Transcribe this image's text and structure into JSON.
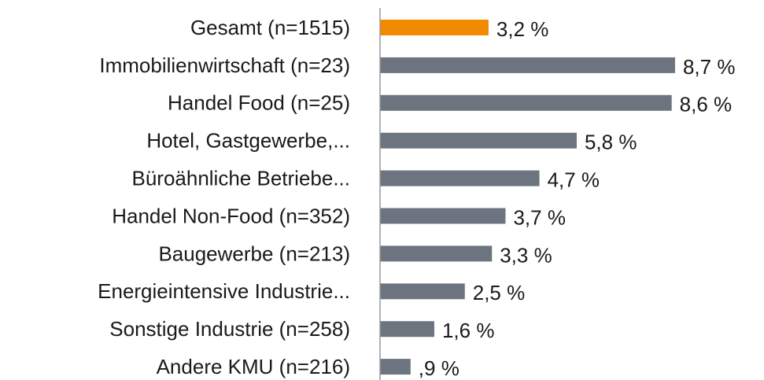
{
  "chart_data": {
    "type": "bar",
    "orientation": "horizontal",
    "categories": [
      "Gesamt (n=1515)",
      "Immobilienwirtschaft (n=23)",
      "Handel Food (n=25)",
      "Hotel, Gastgewerbe,...",
      "Büroähnliche Betriebe...",
      "Handel Non-Food (n=352)",
      "Baugewerbe (n=213)",
      "Energieintensive Industrie...",
      "Sonstige Industrie (n=258)",
      "Andere KMU (n=216)"
    ],
    "values": [
      3.2,
      8.7,
      8.6,
      5.8,
      4.7,
      3.7,
      3.3,
      2.5,
      1.6,
      0.9
    ],
    "value_labels": [
      "3,2 %",
      "8,7 %",
      "8,6 %",
      "5,8 %",
      "4,7 %",
      "3,7 %",
      "3,3 %",
      "2,5 %",
      "1,6 %",
      ",9 %"
    ],
    "colors": [
      "#f28a00",
      "#6c7480",
      "#6c7480",
      "#6c7480",
      "#6c7480",
      "#6c7480",
      "#6c7480",
      "#6c7480",
      "#6c7480",
      "#6c7480"
    ],
    "xlim": [
      0,
      10
    ]
  }
}
